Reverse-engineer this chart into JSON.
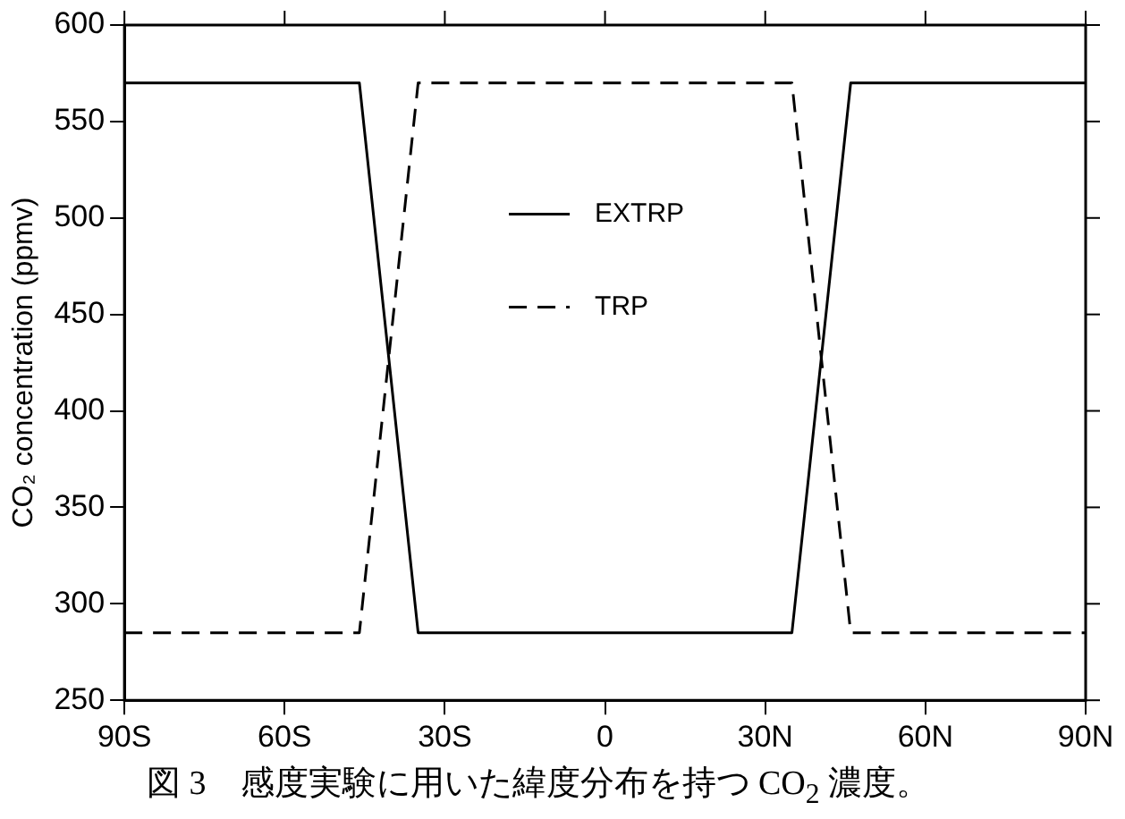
{
  "chart_data": {
    "type": "line",
    "ylabel": "CO₂ concentration (ppmv)",
    "annotations": [
      "図 3　感度実験に用いた緯度分布を持つ CO$_{2}$ 濃度。"
    ],
    "x": [
      -90,
      -46,
      -35,
      35,
      46,
      90
    ],
    "series": [
      {
        "name": "EXTRP",
        "color": "#000000",
        "line_style": "solid",
        "values": [
          570,
          570,
          285,
          285,
          570,
          570
        ]
      },
      {
        "name": "TRP",
        "color": "#000000",
        "line_style": "dashed",
        "values": [
          285,
          285,
          570,
          570,
          285,
          285
        ]
      }
    ],
    "xlim": [
      -90,
      90
    ],
    "xticks": [
      {
        "value": -90,
        "label": "90S"
      },
      {
        "value": -60,
        "label": "60S"
      },
      {
        "value": -30,
        "label": "30S"
      },
      0,
      {
        "value": 30,
        "label": "30N"
      },
      {
        "value": 60,
        "label": "60N"
      },
      {
        "value": 90,
        "label": "90N"
      }
    ],
    "ylim": [
      250,
      600
    ],
    "yticks": [
      250,
      300,
      350,
      400,
      450,
      500,
      550,
      600
    ],
    "grid": false,
    "legend": "top",
    "marker": "none"
  }
}
